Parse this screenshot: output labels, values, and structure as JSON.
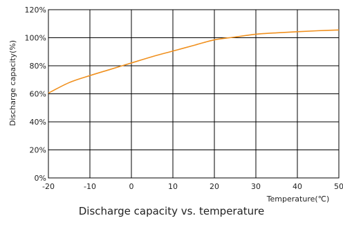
{
  "chart_data": {
    "type": "line",
    "title": "Discharge capacity vs. temperature",
    "xlabel": "Temperature(℃)",
    "ylabel": "Discharge capacity(%)",
    "xlim": [
      -20,
      50
    ],
    "ylim": [
      0,
      120
    ],
    "x_ticks": [
      -20,
      -10,
      0,
      10,
      20,
      30,
      40,
      50
    ],
    "x_tick_labels": [
      "-20",
      "-10",
      "0",
      "10",
      "20",
      "30",
      "40",
      "50"
    ],
    "y_ticks": [
      0,
      20,
      40,
      60,
      80,
      100,
      120
    ],
    "y_tick_labels": [
      "0%",
      "20%",
      "40%",
      "60%",
      "80%",
      "100%",
      "120%"
    ],
    "grid": true,
    "series": [
      {
        "color": "#f0901e",
        "x": [
          -20,
          -15,
          -10,
          -5,
          0,
          5,
          10,
          15,
          20,
          25,
          30,
          35,
          40,
          45,
          50
        ],
        "y": [
          60.5,
          68,
          73,
          77.5,
          82,
          86.5,
          90.5,
          94.5,
          98.5,
          100.5,
          102.5,
          103.5,
          104.3,
          105,
          105.5
        ]
      }
    ]
  }
}
